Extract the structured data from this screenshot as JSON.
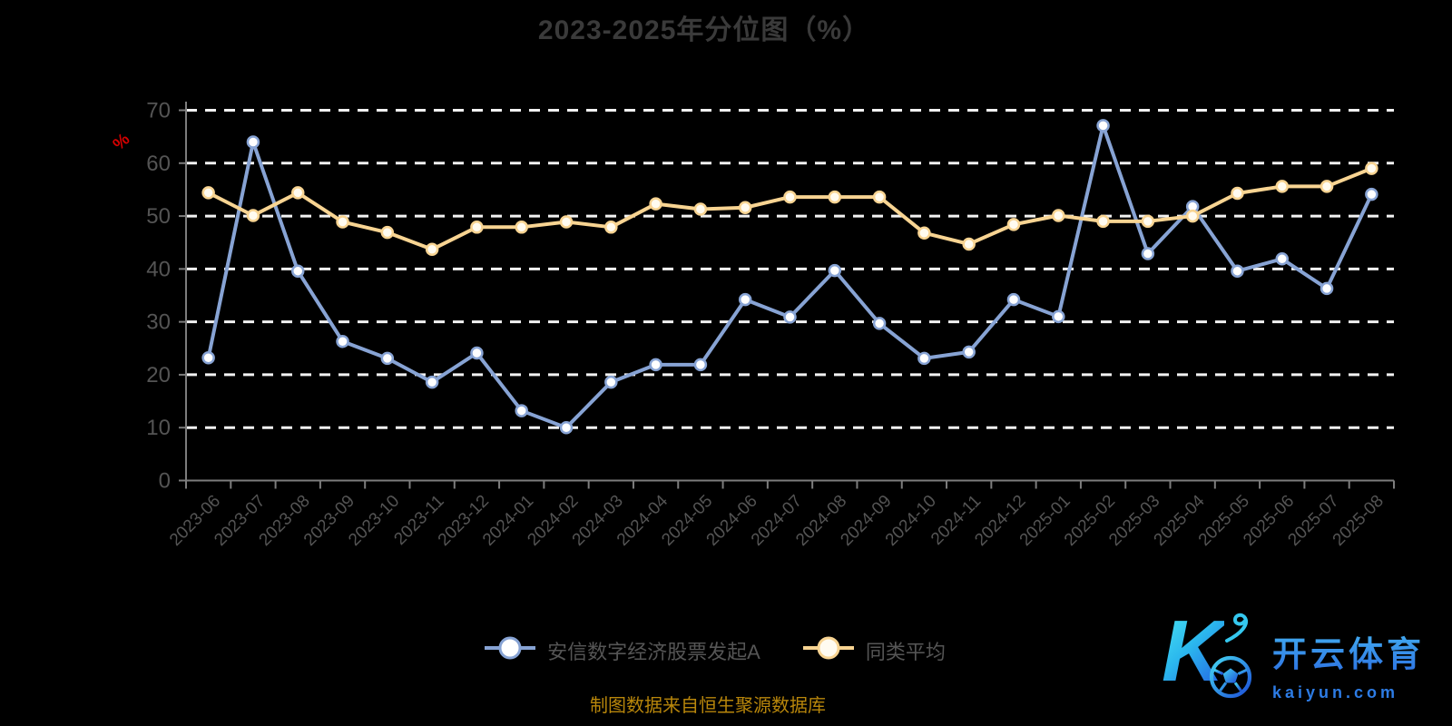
{
  "page": {
    "title": "2023-2025年分位图（%）",
    "y_axis_unit": "%",
    "footer_note": "制图数据来自恒生聚源数据库"
  },
  "colors": {
    "background": "#000000",
    "grid": "#f2f2f2",
    "axis": "#7d7d7d",
    "tick_label": "#545454",
    "title": "#3a3a3a",
    "legend_label": "#555555",
    "footer": "#b8860b",
    "unit_label": "#d40000",
    "fund_line": "#87a3d4",
    "avg_line": "#f8d492"
  },
  "watermark": {
    "letter": "K",
    "brand": "开云体育",
    "domain": "kaiyun.com"
  },
  "chart_data": {
    "type": "line",
    "title": "2023-2025年分位图（%）",
    "xlabel": "",
    "ylabel": "%",
    "ylim": [
      0,
      70
    ],
    "yticks": [
      0,
      10,
      20,
      30,
      40,
      50,
      60,
      70
    ],
    "grid": "horizontal-dashed-white",
    "legend_position": "bottom-center",
    "x": [
      "2023-06",
      "2023-07",
      "2023-08",
      "2023-09",
      "2023-10",
      "2023-11",
      "2023-12",
      "2024-01",
      "2024-02",
      "2024-03",
      "2024-04",
      "2024-05",
      "2024-06",
      "2024-07",
      "2024-08",
      "2024-09",
      "2024-10",
      "2024-11",
      "2024-12",
      "2025-01",
      "2025-02",
      "2025-03",
      "2025-04",
      "2025-05",
      "2025-06",
      "2025-07",
      "2025-08"
    ],
    "series": [
      {
        "name": "安信数字经济股票发起A",
        "key": "fund",
        "color": "#87a3d4",
        "marker_fill": "#ffffff",
        "values": [
          23.2,
          64.0,
          39.6,
          26.3,
          23.1,
          18.6,
          24.1,
          13.2,
          10.0,
          18.6,
          21.9,
          21.9,
          34.2,
          30.9,
          39.7,
          29.7,
          23.1,
          24.3,
          34.2,
          31.0,
          67.1,
          42.9,
          51.8,
          39.6,
          41.9,
          36.3,
          54.1
        ]
      },
      {
        "name": "同类平均",
        "key": "avg",
        "color": "#f8d492",
        "marker_fill": "#fffbf0",
        "values": [
          54.4,
          50.1,
          54.4,
          48.9,
          46.9,
          43.7,
          47.9,
          47.9,
          48.9,
          47.9,
          52.3,
          51.3,
          51.6,
          53.6,
          53.6,
          53.6,
          46.8,
          44.7,
          48.4,
          50.1,
          49.0,
          49.0,
          50.0,
          54.3,
          55.6,
          55.6,
          59.0
        ]
      }
    ]
  }
}
